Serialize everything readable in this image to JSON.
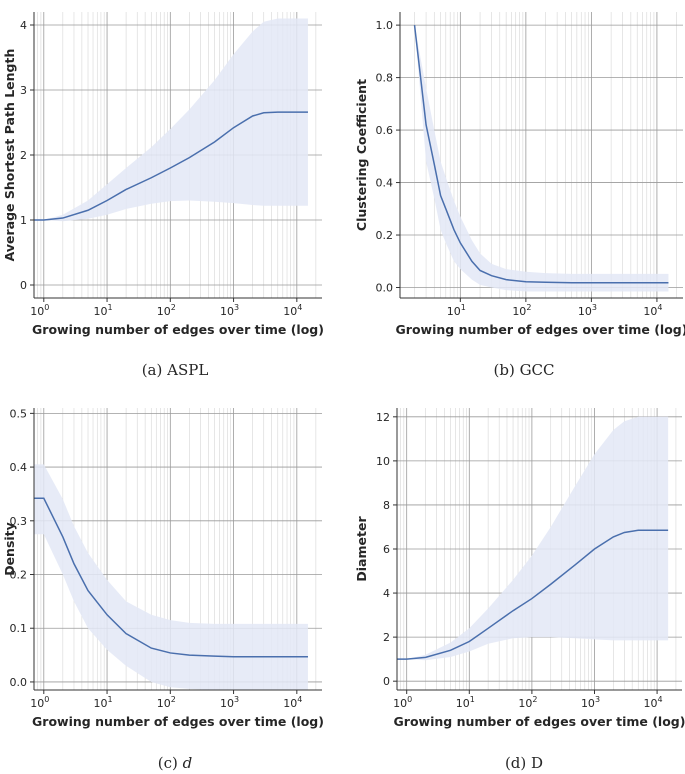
{
  "colors": {
    "line": "#4a6fad",
    "band": "#e3e8f6",
    "grid_major": "#9a9a9a",
    "grid_minor": "#d6d6d6",
    "axis": "#333333"
  },
  "chart_data": [
    {
      "type": "line",
      "panel": "a",
      "caption": "(a) ASPL",
      "xlabel": "Growing number of edges over time (log)",
      "ylabel": "Average Shortest Path Length",
      "xscale": "log",
      "xlim": [
        0.7,
        25000
      ],
      "ylim": [
        -0.2,
        4.2
      ],
      "xticks": [
        1,
        10,
        100,
        1000,
        10000
      ],
      "xtick_labels": [
        [
          "10",
          "0"
        ],
        [
          "10",
          "1"
        ],
        [
          "10",
          "2"
        ],
        [
          "10",
          "3"
        ],
        [
          "10",
          "4"
        ]
      ],
      "yticks": [
        0,
        1,
        2,
        3,
        4
      ],
      "ytick_labels": [
        "0",
        "1",
        "2",
        "3",
        "4"
      ],
      "x": [
        0.7,
        1,
        2,
        5,
        10,
        20,
        50,
        100,
        200,
        500,
        1000,
        2000,
        3000,
        5000,
        10000,
        15000
      ],
      "y": [
        1.0,
        1.0,
        1.03,
        1.15,
        1.3,
        1.47,
        1.65,
        1.8,
        1.96,
        2.2,
        2.42,
        2.6,
        2.65,
        2.66,
        2.66,
        2.66
      ],
      "band_low": [
        1.0,
        1.0,
        0.98,
        1.02,
        1.08,
        1.17,
        1.25,
        1.29,
        1.3,
        1.28,
        1.26,
        1.23,
        1.22,
        1.22,
        1.22,
        1.22
      ],
      "band_high": [
        1.0,
        1.0,
        1.08,
        1.3,
        1.55,
        1.8,
        2.12,
        2.4,
        2.7,
        3.15,
        3.55,
        3.9,
        4.05,
        4.1,
        4.1,
        4.1
      ]
    },
    {
      "type": "line",
      "panel": "b",
      "caption": "(b) GCC",
      "xlabel": "Growing number of edges over time (log)",
      "ylabel": "Clustering Coefficient",
      "xscale": "log",
      "xlim": [
        1.2,
        25000
      ],
      "ylim": [
        -0.04,
        1.05
      ],
      "xticks": [
        10,
        100,
        1000,
        10000
      ],
      "xtick_labels": [
        [
          "10",
          "1"
        ],
        [
          "10",
          "2"
        ],
        [
          "10",
          "3"
        ],
        [
          "10",
          "4"
        ]
      ],
      "yticks": [
        0.0,
        0.2,
        0.4,
        0.6,
        0.8,
        1.0
      ],
      "ytick_labels": [
        "0.0",
        "0.2",
        "0.4",
        "0.6",
        "0.8",
        "1.0"
      ],
      "x": [
        2,
        3,
        4,
        5,
        6,
        8,
        10,
        15,
        20,
        30,
        50,
        100,
        200,
        500,
        1000,
        5000,
        15000
      ],
      "y": [
        1.0,
        0.62,
        0.47,
        0.35,
        0.3,
        0.22,
        0.17,
        0.1,
        0.065,
        0.045,
        0.03,
        0.022,
        0.02,
        0.018,
        0.018,
        0.018,
        0.018
      ],
      "band_low": [
        1.0,
        0.48,
        0.34,
        0.22,
        0.17,
        0.1,
        0.07,
        0.03,
        0.01,
        0.0,
        -0.01,
        -0.015,
        -0.015,
        -0.015,
        -0.015,
        -0.015,
        -0.015
      ],
      "band_high": [
        1.0,
        0.76,
        0.6,
        0.48,
        0.42,
        0.33,
        0.27,
        0.18,
        0.13,
        0.09,
        0.07,
        0.06,
        0.055,
        0.052,
        0.052,
        0.052,
        0.052
      ]
    },
    {
      "type": "line",
      "panel": "c",
      "caption": "(c) d",
      "xlabel": "Growing number of edges over time (log)",
      "ylabel": "Density",
      "xscale": "log",
      "xlim": [
        0.7,
        25000
      ],
      "ylim": [
        -0.015,
        0.51
      ],
      "xticks": [
        1,
        10,
        100,
        1000,
        10000
      ],
      "xtick_labels": [
        [
          "10",
          "0"
        ],
        [
          "10",
          "1"
        ],
        [
          "10",
          "2"
        ],
        [
          "10",
          "3"
        ],
        [
          "10",
          "4"
        ]
      ],
      "yticks": [
        0.0,
        0.1,
        0.2,
        0.3,
        0.4,
        0.5
      ],
      "ytick_labels": [
        "0.0",
        "0.1",
        "0.2",
        "0.3",
        "0.4",
        "0.5"
      ],
      "x": [
        0.7,
        1,
        2,
        3,
        5,
        10,
        20,
        50,
        100,
        200,
        500,
        1000,
        5000,
        15000
      ],
      "y": [
        0.342,
        0.342,
        0.27,
        0.22,
        0.17,
        0.125,
        0.09,
        0.063,
        0.054,
        0.05,
        0.048,
        0.047,
        0.047,
        0.047
      ],
      "band_low": [
        0.275,
        0.275,
        0.2,
        0.15,
        0.1,
        0.06,
        0.03,
        0.0,
        -0.01,
        -0.013,
        -0.015,
        -0.015,
        -0.015,
        -0.015
      ],
      "band_high": [
        0.405,
        0.405,
        0.34,
        0.29,
        0.24,
        0.19,
        0.15,
        0.125,
        0.115,
        0.11,
        0.108,
        0.108,
        0.108,
        0.108
      ]
    },
    {
      "type": "line",
      "panel": "d",
      "caption": "(d) D",
      "xlabel": "Growing number of edges over time (log)",
      "ylabel": "Diameter",
      "xscale": "log",
      "xlim": [
        0.7,
        25000
      ],
      "ylim": [
        -0.4,
        12.4
      ],
      "xticks": [
        1,
        10,
        100,
        1000,
        10000
      ],
      "xtick_labels": [
        [
          "10",
          "0"
        ],
        [
          "10",
          "1"
        ],
        [
          "10",
          "2"
        ],
        [
          "10",
          "3"
        ],
        [
          "10",
          "4"
        ]
      ],
      "yticks": [
        0,
        2,
        4,
        6,
        8,
        10,
        12
      ],
      "ytick_labels": [
        "0",
        "2",
        "4",
        "6",
        "8",
        "10",
        "12"
      ],
      "x": [
        0.7,
        1,
        2,
        5,
        10,
        20,
        50,
        100,
        200,
        500,
        1000,
        2000,
        3000,
        5000,
        10000,
        15000
      ],
      "y": [
        1.0,
        1.0,
        1.08,
        1.4,
        1.8,
        2.4,
        3.2,
        3.75,
        4.4,
        5.3,
        6.0,
        6.55,
        6.75,
        6.85,
        6.85,
        6.85
      ],
      "band_low": [
        1.0,
        1.0,
        0.95,
        1.1,
        1.35,
        1.7,
        1.95,
        2.0,
        2.0,
        1.95,
        1.9,
        1.85,
        1.85,
        1.85,
        1.85,
        1.85
      ],
      "band_high": [
        1.0,
        1.0,
        1.2,
        1.75,
        2.4,
        3.3,
        4.6,
        5.7,
        7.0,
        8.9,
        10.3,
        11.4,
        11.8,
        12.0,
        12.0,
        12.0
      ]
    }
  ]
}
